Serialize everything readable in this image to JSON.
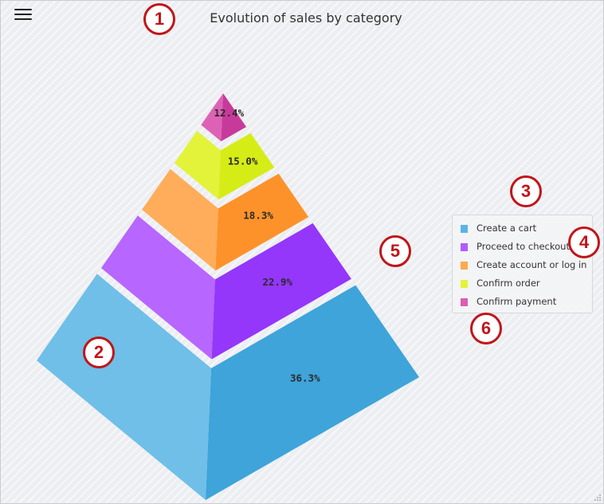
{
  "header": {
    "title": "Evolution of sales by category"
  },
  "chart_data": {
    "type": "pyramid",
    "title": "Evolution of sales by category",
    "legend_position": "right",
    "series": [
      {
        "name": "Create a cart",
        "value": 36.3,
        "label": "36.3%",
        "color": "#5ab4e5",
        "light": "#6fbfe8",
        "dark": "#3ea4da",
        "top": "#57b1e3"
      },
      {
        "name": "Proceed to checkout",
        "value": 22.9,
        "label": "22.9%",
        "color": "#b05bff",
        "light": "#b766ff",
        "dark": "#9536fb",
        "top": "#a64cff"
      },
      {
        "name": "Create account or log in",
        "value": 18.3,
        "label": "18.3%",
        "color": "#ffa94d",
        "light": "#ffad5a",
        "dark": "#fd922a",
        "top": "#ffa54d"
      },
      {
        "name": "Confirm order",
        "value": 15.0,
        "label": "15.0%",
        "color": "#e4f338",
        "light": "#e2f33a",
        "dark": "#d6ec16",
        "top": "#e5f530"
      },
      {
        "name": "Confirm payment",
        "value": 12.4,
        "label": "12.4%",
        "color": "#da5eb3",
        "light": "#dd62b6",
        "dark": "#c73a9a",
        "top": "#da5eb3"
      }
    ]
  },
  "annotations": [
    "1",
    "2",
    "3",
    "4",
    "5",
    "6"
  ]
}
